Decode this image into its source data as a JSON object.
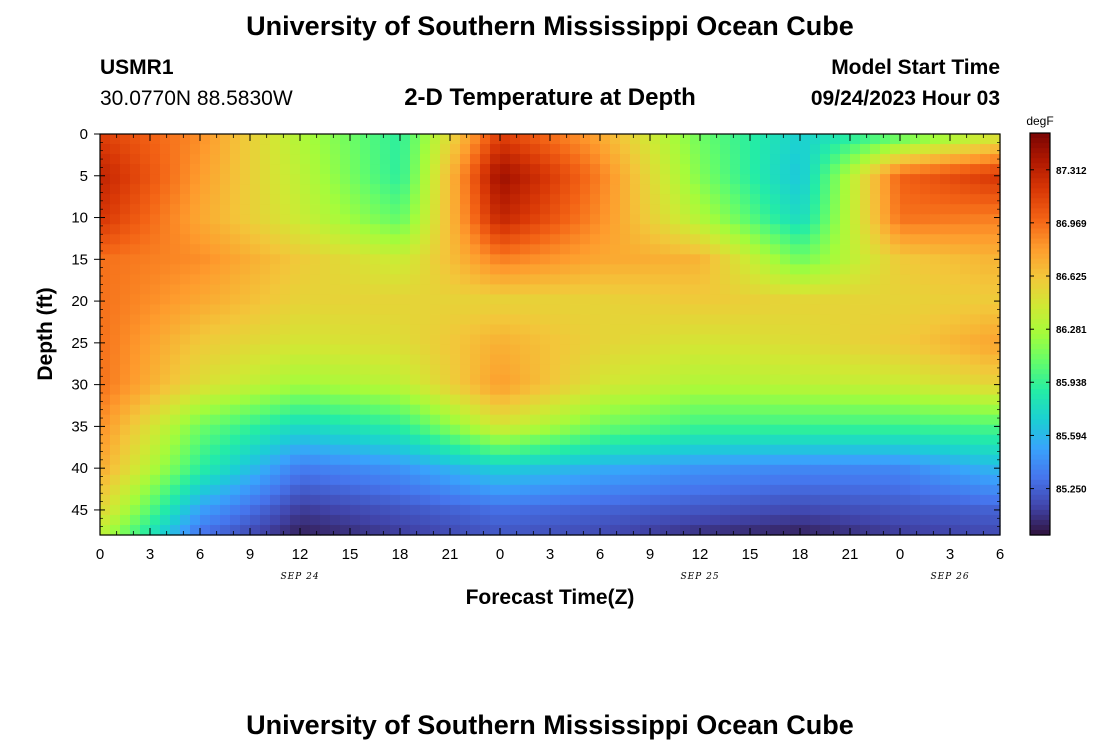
{
  "header": {
    "title": "University of Southern Mississippi Ocean Cube",
    "station": "USMR1",
    "coords": "30.0770N  88.5830W",
    "subtitle": "2-D Temperature at Depth",
    "model_label": "Model Start Time",
    "model_time": "09/24/2023 Hour 03"
  },
  "footer": {
    "title": "University of Southern Mississippi Ocean Cube"
  },
  "colors": {
    "colormap": [
      "#30123b",
      "#4145ab",
      "#4675ed",
      "#39a2fc",
      "#1bcfd4",
      "#24eca6",
      "#61fc6c",
      "#a4fc3b",
      "#d1e834",
      "#f3c63a",
      "#fe9b2d",
      "#f36315",
      "#d93806",
      "#b11901",
      "#7a0403"
    ]
  },
  "chart_data": {
    "type": "heatmap",
    "xlabel": "Forecast Time(Z)",
    "ylabel": "Depth (ft)",
    "unit": "degF",
    "xlim": [
      0,
      54
    ],
    "ylim": [
      0,
      48
    ],
    "x_tick_labels": [
      "0",
      "3",
      "6",
      "9",
      "12",
      "15",
      "18",
      "21",
      "0",
      "3",
      "6",
      "9",
      "12",
      "15",
      "18",
      "21",
      "0",
      "3",
      "6"
    ],
    "y_ticks": [
      0,
      5,
      10,
      15,
      20,
      25,
      30,
      35,
      40,
      45
    ],
    "date_labels": [
      {
        "x": 12,
        "text": "SEP 24"
      },
      {
        "x": 36,
        "text": "SEP 25"
      },
      {
        "x": 51,
        "text": "SEP 26"
      }
    ],
    "colorbar_ticks": [
      "87.312",
      "86.969",
      "86.625",
      "86.281",
      "85.938",
      "85.594",
      "85.250"
    ],
    "colorbar_range": [
      84.95,
      87.55
    ],
    "x": [
      0,
      6,
      12,
      18,
      24,
      30,
      36,
      42,
      48,
      54
    ],
    "depth": [
      0,
      5,
      10,
      15,
      20,
      25,
      30,
      35,
      40,
      45,
      48
    ],
    "values": [
      [
        87.15,
        86.85,
        86.3,
        85.9,
        87.15,
        86.75,
        86.1,
        85.7,
        86.0,
        86.4
      ],
      [
        87.3,
        86.8,
        86.35,
        85.9,
        87.45,
        86.9,
        86.15,
        85.65,
        87.0,
        87.2
      ],
      [
        87.2,
        86.75,
        86.4,
        86.05,
        87.3,
        86.85,
        86.3,
        85.75,
        86.95,
        86.9
      ],
      [
        86.95,
        86.85,
        86.6,
        86.4,
        86.9,
        86.75,
        86.7,
        86.1,
        86.6,
        86.7
      ],
      [
        86.95,
        86.75,
        86.55,
        86.55,
        86.55,
        86.55,
        86.6,
        86.55,
        86.55,
        86.6
      ],
      [
        86.95,
        86.6,
        86.45,
        86.5,
        86.72,
        86.55,
        86.45,
        86.5,
        86.6,
        86.78
      ],
      [
        86.95,
        86.5,
        86.25,
        86.35,
        86.8,
        86.45,
        86.3,
        86.35,
        86.4,
        86.55
      ],
      [
        86.85,
        86.1,
        85.75,
        85.9,
        86.45,
        86.1,
        85.95,
        85.95,
        85.95,
        86.0
      ],
      [
        86.75,
        85.9,
        85.35,
        85.45,
        85.7,
        85.55,
        85.45,
        85.4,
        85.4,
        85.6
      ],
      [
        86.55,
        85.5,
        85.1,
        85.2,
        85.3,
        85.25,
        85.2,
        85.15,
        85.2,
        85.25
      ],
      [
        86.35,
        85.3,
        85.0,
        85.1,
        85.2,
        85.15,
        85.05,
        85.0,
        85.1,
        85.15
      ]
    ]
  }
}
